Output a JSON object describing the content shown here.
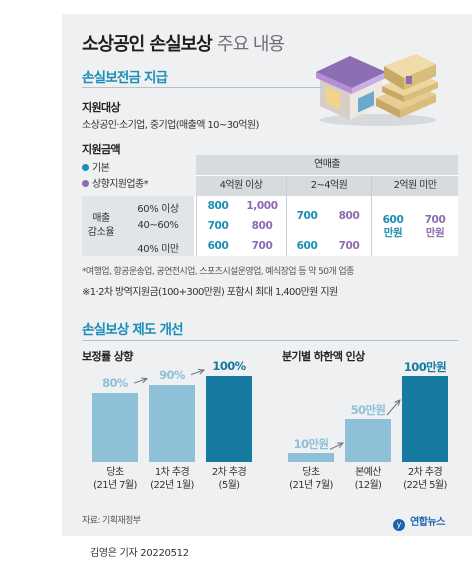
{
  "header": {
    "title_main": "소상공인 손실보상",
    "title_sub": "주요 내용"
  },
  "section1": {
    "heading": "손실보전금 지급",
    "target_label": "지원대상",
    "target_text": "소상공인·소기업, 중기업(매출액 10~30억원)",
    "amount_label": "지원금액",
    "legend": [
      {
        "label": "기본",
        "color": "#1b8eb6"
      },
      {
        "label": "상향지원업종*",
        "color": "#8d6ab1"
      }
    ],
    "table": {
      "top_header": "연매출",
      "revenue_cols": [
        "4억원 이상",
        "2~4억원",
        "2억원 미만"
      ],
      "row_group_label": [
        "매출",
        "감소율"
      ],
      "rows": [
        {
          "label": "60% 이상",
          "basic": [
            "800",
            "",
            ""
          ],
          "upgraded": [
            "1,000",
            "",
            ""
          ]
        },
        {
          "label": "40~60%",
          "basic": [
            "700",
            "700",
            ""
          ],
          "upgraded": [
            "800",
            "800",
            ""
          ]
        },
        {
          "label": "40% 미만",
          "basic": [
            "600",
            "600",
            ""
          ],
          "upgraded": [
            "700",
            "700",
            ""
          ]
        }
      ],
      "merged": {
        "c2_basic": "700",
        "c2_upgraded": "800",
        "c3_basic": [
          "600",
          "만원"
        ],
        "c3_upgraded": [
          "700",
          "만원"
        ]
      },
      "values_col1": {
        "r1": [
          "800",
          "1,000"
        ],
        "r2": [
          "700",
          "800"
        ],
        "r3": [
          "600",
          "700"
        ]
      },
      "values_col2": {
        "r2": [
          "700",
          "800"
        ],
        "r3": [
          "600",
          "700"
        ]
      }
    },
    "note1": "*여행업, 항공운송업, 공연전시업, 스포츠시설운영업, 예식장업 등 약 50개 업종",
    "note2": "※1·2차 방역지원금(100+300만원) 포함시 최대 1,400만원 지원"
  },
  "section2": {
    "heading": "손실보상 제도 개선",
    "colors": {
      "light": "#8ec0d8",
      "dark": "#167aa1"
    }
  },
  "chart_data": [
    {
      "type": "bar",
      "title": "보정률 상향",
      "categories": [
        [
          "당초",
          "(21년 7월)"
        ],
        [
          "1차 추경",
          "(22년 1월)"
        ],
        [
          "2차 추경",
          "(5월)"
        ]
      ],
      "values": [
        80,
        90,
        100
      ],
      "value_labels": [
        "80%",
        "90%",
        "100%"
      ],
      "ylim": [
        0,
        100
      ]
    },
    {
      "type": "bar",
      "title": "분기별 하한액 인상",
      "categories": [
        [
          "당초",
          "(21년 7월)"
        ],
        [
          "본예산",
          "(12월)"
        ],
        [
          "2차 추경",
          "(22년 5월)"
        ]
      ],
      "values": [
        10,
        50,
        100
      ],
      "value_labels": [
        "10만원",
        "50만원",
        "100만원"
      ],
      "ylim": [
        0,
        100
      ]
    }
  ],
  "footer": {
    "source": "자료: 기획재정부",
    "logo_text": "연합뉴스",
    "byline": "김영은 기자  20220512"
  }
}
